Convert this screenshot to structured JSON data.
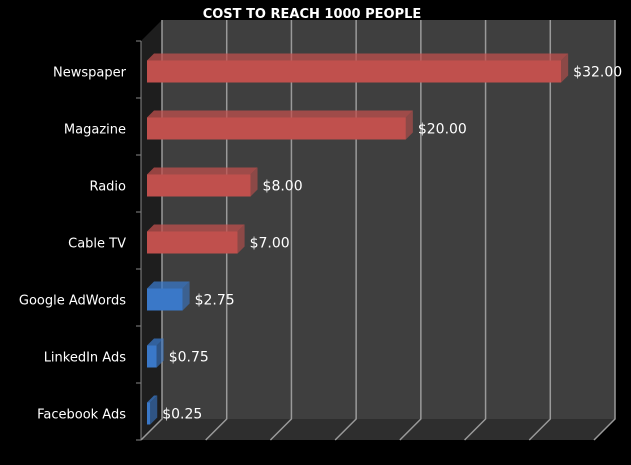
{
  "chart_data": {
    "type": "bar",
    "orientation": "horizontal",
    "style": "3d",
    "title": "COST TO REACH 1000 PEOPLE",
    "categories": [
      "Newspaper",
      "Magazine",
      "Radio",
      "Cable TV",
      "Google AdWords",
      "LinkedIn Ads",
      "Facebook Ads"
    ],
    "values": [
      32,
      20,
      8,
      7,
      2.75,
      0.75,
      0.25
    ],
    "data_labels": [
      "$32.00",
      "$20.00",
      "$8.00",
      "$7.00",
      "$2.75",
      "$0.75",
      "$0.25"
    ],
    "bar_colors": [
      "#c0504d",
      "#c0504d",
      "#c0504d",
      "#c0504d",
      "#3a78c8",
      "#3a78c8",
      "#3a78c8"
    ],
    "xlim": [
      0,
      35
    ],
    "x_gridline_step": 5,
    "grid": true,
    "legend": "none",
    "colors": {
      "background": "#000000",
      "plot_wall": "#3f3f3f",
      "gridline": "#9a9a9a"
    }
  }
}
